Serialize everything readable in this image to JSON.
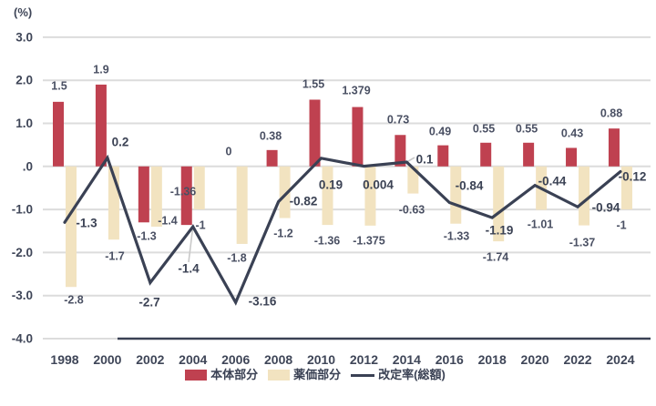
{
  "chart_data": {
    "type": "bar",
    "subtype": "grouped-bars-with-line",
    "unit_label": "(%)",
    "categories": [
      "1998",
      "2000",
      "2002",
      "2004",
      "2006",
      "2008",
      "2010",
      "2012",
      "2014",
      "2016",
      "2018",
      "2020",
      "2022",
      "2024"
    ],
    "series": [
      {
        "name": "本体部分",
        "type": "bar",
        "color": "#bf4150",
        "values": [
          1.5,
          1.9,
          -1.3,
          -1.36,
          0,
          0.38,
          1.55,
          1.379,
          0.73,
          0.49,
          0.55,
          0.55,
          0.43,
          0.88
        ],
        "labels": [
          "1.5",
          "1.9",
          "-1.3",
          "-1.36",
          "0",
          "0.38",
          "1.55",
          "1.379",
          "0.73",
          "0.49",
          "0.55",
          "0.55",
          "0.43",
          "0.88"
        ]
      },
      {
        "name": "薬価部分",
        "type": "bar",
        "color": "#f2e3c0",
        "values": [
          -2.8,
          -1.7,
          -1.4,
          -1,
          -1.8,
          -1.2,
          -1.36,
          -1.375,
          -0.63,
          -1.33,
          -1.74,
          -1.01,
          -1.37,
          -1
        ],
        "labels": [
          "-2.8",
          "-1.7",
          "-1.4",
          "-1",
          "-1.8",
          "-1.2",
          "-1.36",
          "-1.375",
          "-0.63",
          "-1.33",
          "-1.74",
          "-1.01",
          "-1.37",
          "-1"
        ]
      },
      {
        "name": "改定率(総額)",
        "type": "line",
        "color": "#3a4154",
        "values": [
          -1.3,
          0.2,
          -2.7,
          -1.4,
          -3.16,
          -0.82,
          0.19,
          0.004,
          0.1,
          -0.84,
          -1.19,
          -0.44,
          -0.94,
          -0.12
        ],
        "labels": [
          "-1.3",
          "0.2",
          "-2.7",
          "-1.4",
          "-3.16",
          "-0.82",
          "0.19",
          "0.004",
          "0.1",
          "-0.84",
          "-1.19",
          "-0.44",
          "-0.94",
          "-0.12"
        ]
      }
    ],
    "ylim": [
      -4.0,
      3.0
    ],
    "yticks": {
      "values": [
        3,
        2,
        1,
        0,
        -1,
        -2,
        -3,
        -4
      ],
      "labels": [
        "3.0",
        "2.0",
        "1.0",
        ".0",
        "-1.0",
        "-2.0",
        "-3.0",
        "-4.0"
      ]
    },
    "grid": true,
    "legend_position": "bottom",
    "colors": {
      "grid": "#dcdcdc",
      "axis_dark": "#3a4154",
      "bar_label_text": "#4a5063",
      "line_label_text": "#3b4254",
      "tick_text": "#3f4658",
      "leader": "#c9c9c9",
      "background": "#ffffff"
    }
  }
}
